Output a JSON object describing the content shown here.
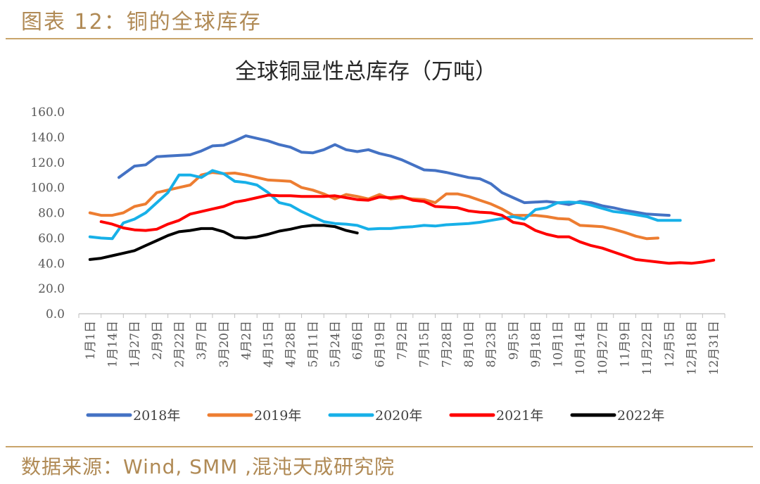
{
  "header": {
    "title": "图表 12：铜的全球库存"
  },
  "footer": {
    "source": "数据来源：Wind, SMM ,混沌天成研究院"
  },
  "chart_data": {
    "type": "line",
    "title": "全球铜显性总库存（万吨）",
    "xlabel": "",
    "ylabel": "",
    "ylim": [
      0,
      160
    ],
    "yticks": [
      "0.0",
      "20.0",
      "40.0",
      "60.0",
      "80.0",
      "100.0",
      "120.0",
      "140.0",
      "160.0"
    ],
    "categories": [
      "1月1日",
      "1月14日",
      "1月27日",
      "2月9日",
      "2月22日",
      "3月7日",
      "3月20日",
      "4月2日",
      "4月15日",
      "4月28日",
      "5月11日",
      "5月24日",
      "6月6日",
      "6月19日",
      "7月2日",
      "7月15日",
      "7月28日",
      "8月10日",
      "8月23日",
      "9月5日",
      "9月18日",
      "10月1日",
      "10月14日",
      "10月27日",
      "11月9日",
      "11月22日",
      "12月5日",
      "12月18日",
      "12月31日"
    ],
    "legend_position": "bottom",
    "grid": false,
    "series": [
      {
        "name": "2018年",
        "color": "#4472c4",
        "points": [
          [
            1.3,
            108
          ],
          [
            2,
            117
          ],
          [
            2.5,
            118
          ],
          [
            3,
            124.5
          ],
          [
            3.5,
            125
          ],
          [
            4,
            125.5
          ],
          [
            4.5,
            126
          ],
          [
            5,
            129
          ],
          [
            5.5,
            133
          ],
          [
            6,
            133.5
          ],
          [
            6.5,
            137
          ],
          [
            7,
            141
          ],
          [
            7.5,
            139
          ],
          [
            8,
            137
          ],
          [
            8.5,
            134
          ],
          [
            9,
            132
          ],
          [
            9.5,
            128
          ],
          [
            10,
            127.5
          ],
          [
            10.5,
            130
          ],
          [
            11,
            134
          ],
          [
            11.5,
            130
          ],
          [
            12,
            128.5
          ],
          [
            12.5,
            130
          ],
          [
            13,
            127
          ],
          [
            13.5,
            125
          ],
          [
            14,
            122
          ],
          [
            14.5,
            118
          ],
          [
            15,
            114
          ],
          [
            15.5,
            113.5
          ],
          [
            16,
            112
          ],
          [
            16.5,
            110
          ],
          [
            17,
            108
          ],
          [
            17.5,
            107
          ],
          [
            18,
            103
          ],
          [
            18.5,
            96
          ],
          [
            19,
            92
          ],
          [
            19.5,
            88
          ],
          [
            20,
            88.5
          ],
          [
            20.5,
            89
          ],
          [
            21,
            88
          ],
          [
            21.5,
            86.5
          ],
          [
            22,
            89
          ],
          [
            22.5,
            88
          ],
          [
            23,
            85.5
          ],
          [
            23.5,
            84
          ],
          [
            24,
            82
          ],
          [
            24.5,
            80.5
          ],
          [
            25,
            79
          ],
          [
            25.5,
            78.5
          ],
          [
            26,
            78
          ]
        ]
      },
      {
        "name": "2019年",
        "color": "#ed7d31",
        "points": [
          [
            0,
            80
          ],
          [
            0.5,
            78
          ],
          [
            1,
            78
          ],
          [
            1.5,
            80
          ],
          [
            2,
            85
          ],
          [
            2.5,
            87
          ],
          [
            3,
            96
          ],
          [
            3.5,
            98
          ],
          [
            4,
            100
          ],
          [
            4.5,
            102
          ],
          [
            5,
            110
          ],
          [
            5.5,
            112
          ],
          [
            6,
            111
          ],
          [
            6.5,
            111.5
          ],
          [
            7,
            110
          ],
          [
            7.5,
            108
          ],
          [
            8,
            106
          ],
          [
            8.5,
            105.5
          ],
          [
            9,
            105
          ],
          [
            9.5,
            100
          ],
          [
            10,
            98
          ],
          [
            10.5,
            95
          ],
          [
            11,
            91
          ],
          [
            11.5,
            94.5
          ],
          [
            12,
            93
          ],
          [
            12.5,
            91
          ],
          [
            13,
            94.5
          ],
          [
            13.5,
            91
          ],
          [
            14,
            92
          ],
          [
            14.5,
            91
          ],
          [
            15,
            90.5
          ],
          [
            15.5,
            88
          ],
          [
            16,
            95
          ],
          [
            16.5,
            95
          ],
          [
            17,
            93
          ],
          [
            17.5,
            90
          ],
          [
            18,
            87
          ],
          [
            18.5,
            83
          ],
          [
            19,
            78
          ],
          [
            19.5,
            78
          ],
          [
            20,
            78
          ],
          [
            20.5,
            77
          ],
          [
            21,
            75.5
          ],
          [
            21.5,
            75
          ],
          [
            22,
            70
          ],
          [
            22.5,
            69.5
          ],
          [
            23,
            69
          ],
          [
            23.5,
            67
          ],
          [
            24,
            64.5
          ],
          [
            24.5,
            61.5
          ],
          [
            25,
            59.5
          ],
          [
            25.5,
            60
          ]
        ]
      },
      {
        "name": "2020年",
        "color": "#17b0e8",
        "points": [
          [
            0,
            61
          ],
          [
            0.5,
            60
          ],
          [
            1,
            59.5
          ],
          [
            1.5,
            72
          ],
          [
            2,
            75
          ],
          [
            2.5,
            80
          ],
          [
            3,
            88
          ],
          [
            3.5,
            96
          ],
          [
            4,
            110
          ],
          [
            4.5,
            110
          ],
          [
            5,
            108
          ],
          [
            5.5,
            113.5
          ],
          [
            6,
            111
          ],
          [
            6.5,
            105
          ],
          [
            7,
            104
          ],
          [
            7.5,
            102
          ],
          [
            8,
            96
          ],
          [
            8.5,
            88
          ],
          [
            9,
            86
          ],
          [
            9.5,
            81
          ],
          [
            10,
            77
          ],
          [
            10.5,
            73
          ],
          [
            11,
            71.5
          ],
          [
            11.5,
            71
          ],
          [
            12,
            70
          ],
          [
            12.5,
            67
          ],
          [
            13,
            67.5
          ],
          [
            13.5,
            67.5
          ],
          [
            14,
            68.5
          ],
          [
            14.5,
            69
          ],
          [
            15,
            70
          ],
          [
            15.5,
            69.5
          ],
          [
            16,
            70.5
          ],
          [
            16.5,
            71
          ],
          [
            17,
            71.5
          ],
          [
            17.5,
            72.5
          ],
          [
            18,
            74
          ],
          [
            18.5,
            75.5
          ],
          [
            19,
            77
          ],
          [
            19.5,
            75
          ],
          [
            20,
            82.5
          ],
          [
            20.5,
            84
          ],
          [
            21,
            88
          ],
          [
            21.5,
            88.5
          ],
          [
            22,
            88
          ],
          [
            22.5,
            86
          ],
          [
            23,
            83.5
          ],
          [
            23.5,
            81
          ],
          [
            24,
            80
          ],
          [
            24.5,
            78.5
          ],
          [
            25,
            77
          ],
          [
            25.5,
            74
          ],
          [
            26,
            74
          ],
          [
            26.5,
            74
          ]
        ]
      },
      {
        "name": "2021年",
        "color": "#ff0000",
        "points": [
          [
            0.5,
            73
          ],
          [
            1,
            71
          ],
          [
            1.5,
            68
          ],
          [
            2,
            66.5
          ],
          [
            2.5,
            66
          ],
          [
            3,
            67
          ],
          [
            3.5,
            71
          ],
          [
            4,
            74
          ],
          [
            4.5,
            79
          ],
          [
            5,
            81
          ],
          [
            5.5,
            83
          ],
          [
            6,
            85
          ],
          [
            6.5,
            88.5
          ],
          [
            7,
            90
          ],
          [
            7.5,
            92
          ],
          [
            8,
            94
          ],
          [
            8.5,
            93.5
          ],
          [
            9,
            93.5
          ],
          [
            9.5,
            93
          ],
          [
            10,
            93
          ],
          [
            10.5,
            93
          ],
          [
            11,
            93.5
          ],
          [
            11.5,
            92
          ],
          [
            12,
            90.5
          ],
          [
            12.5,
            90
          ],
          [
            13,
            92.5
          ],
          [
            13.5,
            92
          ],
          [
            14,
            93
          ],
          [
            14.5,
            90
          ],
          [
            15,
            89
          ],
          [
            15.5,
            85
          ],
          [
            16,
            84.5
          ],
          [
            16.5,
            84
          ],
          [
            17,
            81.5
          ],
          [
            17.5,
            80.5
          ],
          [
            18,
            80
          ],
          [
            18.5,
            78
          ],
          [
            19,
            72.5
          ],
          [
            19.5,
            71
          ],
          [
            20,
            66
          ],
          [
            20.5,
            63
          ],
          [
            21,
            61
          ],
          [
            21.5,
            61
          ],
          [
            22,
            57
          ],
          [
            22.5,
            54
          ],
          [
            23,
            52
          ],
          [
            23.5,
            49
          ],
          [
            24,
            46
          ],
          [
            24.5,
            43
          ],
          [
            25,
            42
          ],
          [
            25.5,
            41
          ],
          [
            26,
            40
          ],
          [
            26.5,
            40.5
          ],
          [
            27,
            40
          ],
          [
            27.5,
            41
          ],
          [
            28,
            42.5
          ]
        ]
      },
      {
        "name": "2022年",
        "color": "#000000",
        "points": [
          [
            0,
            43
          ],
          [
            0.5,
            44
          ],
          [
            1,
            46
          ],
          [
            1.5,
            48
          ],
          [
            2,
            50
          ],
          [
            2.5,
            54
          ],
          [
            3,
            58
          ],
          [
            3.5,
            62
          ],
          [
            4,
            65
          ],
          [
            4.5,
            66
          ],
          [
            5,
            67.5
          ],
          [
            5.5,
            67.5
          ],
          [
            6,
            65
          ],
          [
            6.5,
            60.5
          ],
          [
            7,
            60
          ],
          [
            7.5,
            61
          ],
          [
            8,
            63
          ],
          [
            8.5,
            65.5
          ],
          [
            9,
            67
          ],
          [
            9.5,
            69
          ],
          [
            10,
            70
          ],
          [
            10.5,
            70
          ],
          [
            11,
            69
          ],
          [
            11.5,
            66
          ],
          [
            12,
            64
          ]
        ]
      }
    ]
  }
}
